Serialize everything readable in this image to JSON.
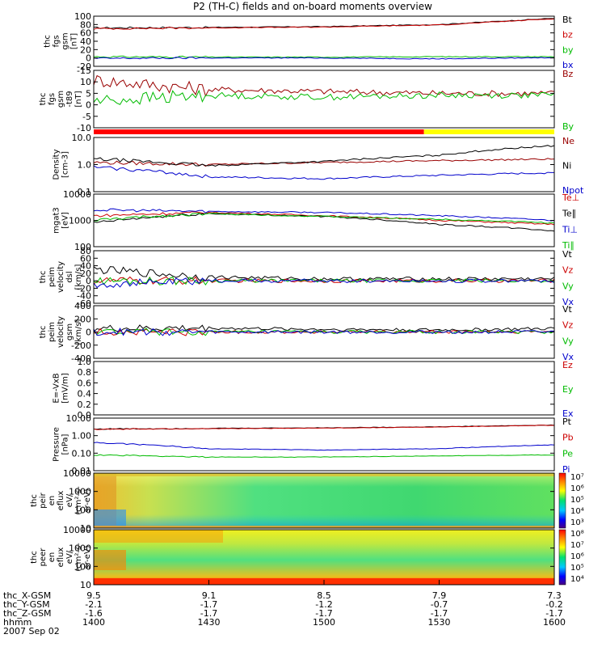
{
  "title": "P2 (TH-C) fields and on-board moments overview",
  "panels": [
    {
      "id": "fgs_gsm",
      "ylabel": [
        "thc",
        "fgs",
        "gsm",
        "[nT]"
      ],
      "ticks": [
        "100",
        "80",
        "60",
        "40",
        "20",
        "0",
        "-20"
      ],
      "legend": [
        {
          "label": "Bt",
          "color": "#000000"
        },
        {
          "label": "bz",
          "color": "#cc0000"
        },
        {
          "label": "by",
          "color": "#00bb00"
        },
        {
          "label": "bx",
          "color": "#0000cc"
        }
      ]
    },
    {
      "id": "fgs_dmpa",
      "ylabel": [
        "thc",
        "fgs",
        "gsm",
        "-t89",
        "[nT]"
      ],
      "ticks": [
        "-15",
        "10",
        "5",
        "0",
        "-5",
        "-10"
      ],
      "legend": [
        {
          "label": "Bz",
          "color": "#990000"
        },
        {
          "label": "By",
          "color": "#00bb00"
        }
      ]
    },
    {
      "id": "density",
      "ylabel": [
        "Density",
        "[cm-3]"
      ],
      "ticks": [
        "10.0",
        "1.0",
        "0.1"
      ],
      "legend": [
        {
          "label": "Ne",
          "color": "#990000"
        },
        {
          "label": "Ni",
          "color": "#000000"
        },
        {
          "label": "Npot",
          "color": "#0000cc"
        }
      ]
    },
    {
      "id": "temperature",
      "ylabel": [
        "mgat3",
        "[eV]"
      ],
      "ticks": [
        "10000",
        "1000",
        "100"
      ],
      "legend": [
        {
          "label": "Te⊥",
          "color": "#cc0000"
        },
        {
          "label": "Te∥",
          "color": "#000000"
        },
        {
          "label": "Ti⊥",
          "color": "#0000cc"
        },
        {
          "label": "Ti∥",
          "color": "#00bb00"
        }
      ]
    },
    {
      "id": "vel_dsl",
      "ylabel": [
        "thc",
        "peim",
        "velocity",
        "dsl",
        "[km/s]"
      ],
      "ticks": [
        "80",
        "60",
        "40",
        "20",
        "0",
        "-20",
        "-40",
        "-60"
      ],
      "legend": [
        {
          "label": "Vt",
          "color": "#000000"
        },
        {
          "label": "Vz",
          "color": "#cc0000"
        },
        {
          "label": "Vy",
          "color": "#00bb00"
        },
        {
          "label": "Vx",
          "color": "#0000cc"
        }
      ]
    },
    {
      "id": "vel_gsm",
      "ylabel": [
        "thc",
        "peim",
        "velocity",
        "gsm",
        "[km/s]"
      ],
      "ticks": [
        "400",
        "200",
        "0",
        "-200",
        "-400"
      ],
      "legend": [
        {
          "label": "Vt",
          "color": "#000000"
        },
        {
          "label": "Vz",
          "color": "#cc0000"
        },
        {
          "label": "Vy",
          "color": "#00bb00"
        },
        {
          "label": "Vx",
          "color": "#0000cc"
        }
      ]
    },
    {
      "id": "efield",
      "ylabel": [
        "E=-VxB",
        "[mV/m]"
      ],
      "ticks": [
        "1.0",
        "0.8",
        "0.6",
        "0.4",
        "0.2",
        "0.0"
      ],
      "legend": [
        {
          "label": "Ez",
          "color": "#cc0000"
        },
        {
          "label": "Ey",
          "color": "#00bb00"
        },
        {
          "label": "Ex",
          "color": "#0000cc"
        }
      ]
    },
    {
      "id": "pressure",
      "ylabel": [
        "Pressure",
        "[nPa]"
      ],
      "ticks": [
        "10.00",
        "1.00",
        "0.10",
        "0.01"
      ],
      "legend": [
        {
          "label": "Pt",
          "color": "#000000"
        },
        {
          "label": "Pb",
          "color": "#cc0000"
        },
        {
          "label": "Pe",
          "color": "#00bb00"
        },
        {
          "label": "Pi",
          "color": "#0000cc"
        }
      ]
    },
    {
      "id": "peir",
      "ylabel": [
        "thc",
        "peir",
        "en",
        "eflux",
        "eV/",
        "(cm²-s-",
        "sr-eV)"
      ],
      "ticks": [
        "10000",
        "1000",
        "100",
        "10"
      ],
      "colorbar": [
        "10⁷",
        "10⁶",
        "10⁵",
        "10⁴",
        "10³"
      ]
    },
    {
      "id": "peer",
      "ylabel": [
        "thc",
        "peer",
        "en",
        "eflux",
        "eV/",
        "(cm²-s-",
        "sr-eV)"
      ],
      "ticks": [
        "10000",
        "1000",
        "100",
        "10"
      ],
      "colorbar": [
        "10⁸",
        "10⁷",
        "10⁶",
        "10⁵",
        "10⁴"
      ]
    }
  ],
  "xaxis": {
    "rows": [
      {
        "label": "thc_X-GSM",
        "values": [
          "9.5",
          "9.1",
          "8.5",
          "7.9",
          "7.3"
        ]
      },
      {
        "label": "thc_Y-GSM",
        "values": [
          "-2.1",
          "-1.7",
          "-1.2",
          "-0.7",
          "-0.2"
        ]
      },
      {
        "label": "thc_Z-GSM",
        "values": [
          "-1.6",
          "-1.7",
          "-1.7",
          "-1.7",
          "-1.7"
        ]
      },
      {
        "label": "hhmm",
        "values": [
          "1400",
          "1430",
          "1500",
          "1530",
          "1600"
        ]
      }
    ],
    "date": "2007 Sep 02"
  },
  "mode_bar": {
    "colors": [
      "#ff0000",
      "#ffff00"
    ],
    "split_fraction": 0.717
  },
  "chart_data": [
    {
      "type": "line",
      "panel": "fgs_gsm",
      "x_unit": "hhmm",
      "x": [
        "1400",
        "1430",
        "1500",
        "1530",
        "1600"
      ],
      "ylim": [
        -20,
        100
      ],
      "series": [
        {
          "name": "Bt",
          "values": [
            72,
            73,
            75,
            80,
            95
          ]
        },
        {
          "name": "bz",
          "values": [
            70,
            72,
            74,
            79,
            94
          ]
        },
        {
          "name": "by",
          "values": [
            3,
            2,
            2,
            3,
            3
          ]
        },
        {
          "name": "bx",
          "values": [
            -1,
            0,
            0,
            -2,
            1
          ]
        }
      ]
    },
    {
      "type": "line",
      "panel": "fgs_dmpa",
      "x_unit": "hhmm",
      "x": [
        "1400",
        "1430",
        "1500",
        "1530",
        "1600"
      ],
      "ylim": [
        -15,
        15
      ],
      "series": [
        {
          "name": "Bz",
          "values": [
            10,
            5,
            4,
            3,
            3
          ]
        },
        {
          "name": "By",
          "values": [
            -1,
            2,
            1,
            2,
            2
          ]
        }
      ]
    },
    {
      "type": "line",
      "panel": "density",
      "x_unit": "hhmm",
      "x": [
        "1400",
        "1430",
        "1500",
        "1530",
        "1600"
      ],
      "ylim": [
        0.1,
        10
      ],
      "series": [
        {
          "name": "Ne",
          "values": [
            1.2,
            1.0,
            1.2,
            1.4,
            1.6
          ]
        },
        {
          "name": "Ni",
          "values": [
            1.6,
            0.9,
            1.3,
            2.2,
            5.0
          ]
        },
        {
          "name": "Npot",
          "values": [
            0.8,
            0.35,
            0.3,
            0.4,
            0.5
          ]
        }
      ]
    },
    {
      "type": "line",
      "panel": "temperature",
      "x_unit": "hhmm",
      "x": [
        "1400",
        "1430",
        "1500",
        "1530",
        "1600"
      ],
      "ylim": [
        100,
        10000
      ],
      "series": [
        {
          "name": "Te⊥",
          "values": [
            1500,
            2000,
            1500,
            1000,
            700
          ]
        },
        {
          "name": "Te∥",
          "values": [
            800,
            1800,
            1400,
            700,
            400
          ]
        },
        {
          "name": "Ti⊥",
          "values": [
            2500,
            2200,
            2000,
            1500,
            1000
          ]
        },
        {
          "name": "Ti∥",
          "values": [
            1000,
            1800,
            1400,
            1100,
            800
          ]
        }
      ]
    },
    {
      "type": "line",
      "panel": "vel_dsl",
      "x_unit": "hhmm",
      "x": [
        "1400",
        "1430",
        "1500",
        "1530",
        "1600"
      ],
      "ylim": [
        -60,
        80
      ],
      "series": [
        {
          "name": "Vt",
          "values": [
            30,
            10,
            5,
            5,
            5
          ]
        },
        {
          "name": "Vz",
          "values": [
            0,
            0,
            0,
            0,
            0
          ]
        },
        {
          "name": "Vy",
          "values": [
            0,
            0,
            0,
            0,
            0
          ]
        },
        {
          "name": "Vx",
          "values": [
            -10,
            0,
            0,
            0,
            0
          ]
        }
      ]
    },
    {
      "type": "line",
      "panel": "vel_gsm",
      "x_unit": "hhmm",
      "x": [
        "1400",
        "1430",
        "1500",
        "1530",
        "1600"
      ],
      "ylim": [
        -400,
        400
      ],
      "series": [
        {
          "name": "Vt",
          "values": [
            50,
            60,
            40,
            30,
            50
          ]
        },
        {
          "name": "Vz",
          "values": [
            0,
            0,
            0,
            0,
            0
          ]
        },
        {
          "name": "Vy",
          "values": [
            0,
            0,
            0,
            0,
            0
          ]
        },
        {
          "name": "Vx",
          "values": [
            0,
            0,
            0,
            0,
            0
          ]
        }
      ]
    },
    {
      "type": "line",
      "panel": "pressure",
      "x_unit": "hhmm",
      "x": [
        "1400",
        "1430",
        "1500",
        "1530",
        "1600"
      ],
      "ylim": [
        0.01,
        10
      ],
      "series": [
        {
          "name": "Pt",
          "values": [
            2.4,
            2.6,
            2.8,
            3.2,
            4.0
          ]
        },
        {
          "name": "Pb",
          "values": [
            2.3,
            2.5,
            2.7,
            3.1,
            3.9
          ]
        },
        {
          "name": "Pe",
          "values": [
            0.08,
            0.06,
            0.06,
            0.07,
            0.08
          ]
        },
        {
          "name": "Pi",
          "values": [
            0.4,
            0.18,
            0.15,
            0.18,
            0.3
          ]
        }
      ]
    },
    {
      "type": "heatmap",
      "panel": "peir",
      "x_unit": "hhmm",
      "x": [
        "1400",
        "1430",
        "1500",
        "1530",
        "1600"
      ],
      "y_unit": "eV",
      "ylim": [
        10,
        10000
      ],
      "colorbar_range": [
        "10³",
        "10⁷"
      ]
    },
    {
      "type": "heatmap",
      "panel": "peer",
      "x_unit": "hhmm",
      "x": [
        "1400",
        "1430",
        "1500",
        "1530",
        "1600"
      ],
      "y_unit": "eV",
      "ylim": [
        10,
        10000
      ],
      "colorbar_range": [
        "10⁴",
        "10⁸"
      ]
    }
  ]
}
